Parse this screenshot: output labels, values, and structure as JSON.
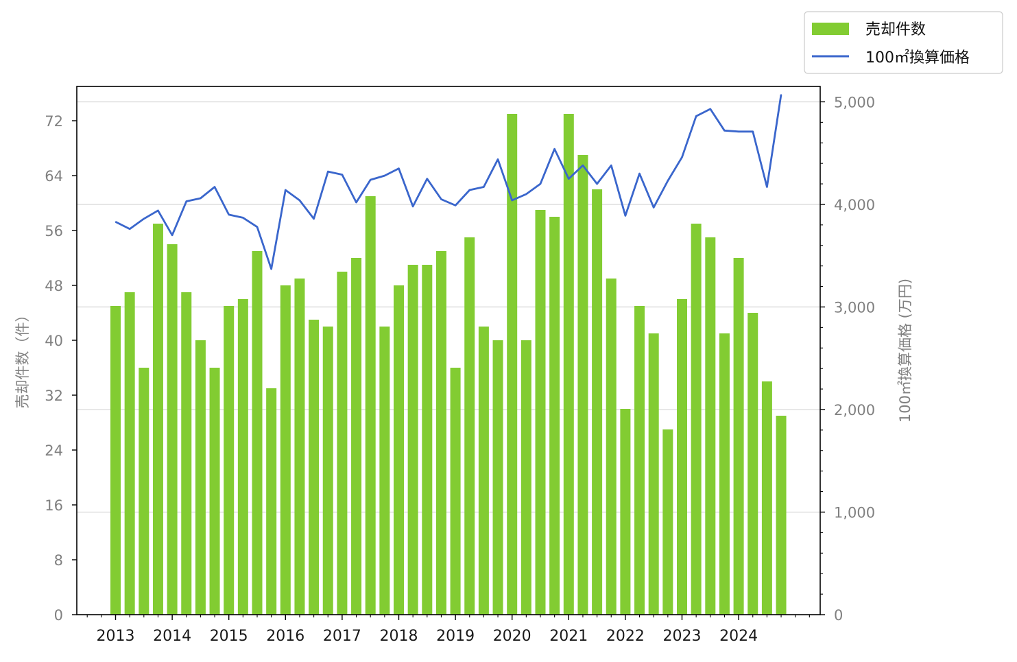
{
  "chart_data": {
    "type": "bar",
    "colors": {
      "bar": "#82cc32",
      "line": "#3a66cc",
      "grid": "#d9d9d9",
      "tick_text": "#808080",
      "x_tick_text": "#1a1a1a"
    },
    "x_tick_labels": [
      "2013",
      "2014",
      "2015",
      "2016",
      "2017",
      "2018",
      "2019",
      "2020",
      "2021",
      "2022",
      "2023",
      "2024"
    ],
    "y_left": {
      "label": "売却件数（件）",
      "ticks": [
        "0",
        "8",
        "16",
        "24",
        "32",
        "40",
        "48",
        "56",
        "64",
        "72"
      ],
      "lim": [
        0,
        77
      ]
    },
    "y_right": {
      "label": "100㎡換算価格 (万円)",
      "ticks": [
        "0",
        "1,000",
        "2,000",
        "3,000",
        "4,000",
        "5,000"
      ],
      "lim": [
        0,
        5150
      ]
    },
    "grid": "horizontal (right axis major ticks)",
    "legend": {
      "placement": "top-right outside",
      "entries": [
        "売却件数",
        "100㎡換算価格"
      ]
    },
    "series": [
      {
        "name": "売却件数",
        "type": "bar",
        "axis": "left",
        "values": [
          45,
          47,
          36,
          57,
          54,
          47,
          40,
          36,
          45,
          46,
          53,
          33,
          48,
          49,
          43,
          42,
          50,
          52,
          61,
          42,
          48,
          51,
          51,
          53,
          36,
          55,
          42,
          40,
          73,
          40,
          59,
          58,
          73,
          67,
          62,
          49,
          30,
          45,
          41,
          27,
          46,
          57,
          55,
          41,
          52,
          44,
          34,
          29
        ]
      },
      {
        "name": "100㎡換算価格",
        "type": "line",
        "axis": "right",
        "values": [
          3830,
          3760,
          3860,
          3940,
          3700,
          4030,
          4060,
          4170,
          3900,
          3870,
          3780,
          3370,
          4140,
          4040,
          3860,
          4320,
          4290,
          4020,
          4240,
          4280,
          4350,
          3980,
          4250,
          4050,
          3990,
          4140,
          4170,
          4440,
          4040,
          4100,
          4200,
          4540,
          4250,
          4380,
          4200,
          4380,
          3890,
          4300,
          3970,
          4230,
          4460,
          4860,
          4930,
          4720,
          4710,
          4710,
          4170,
          5070
        ]
      }
    ]
  }
}
